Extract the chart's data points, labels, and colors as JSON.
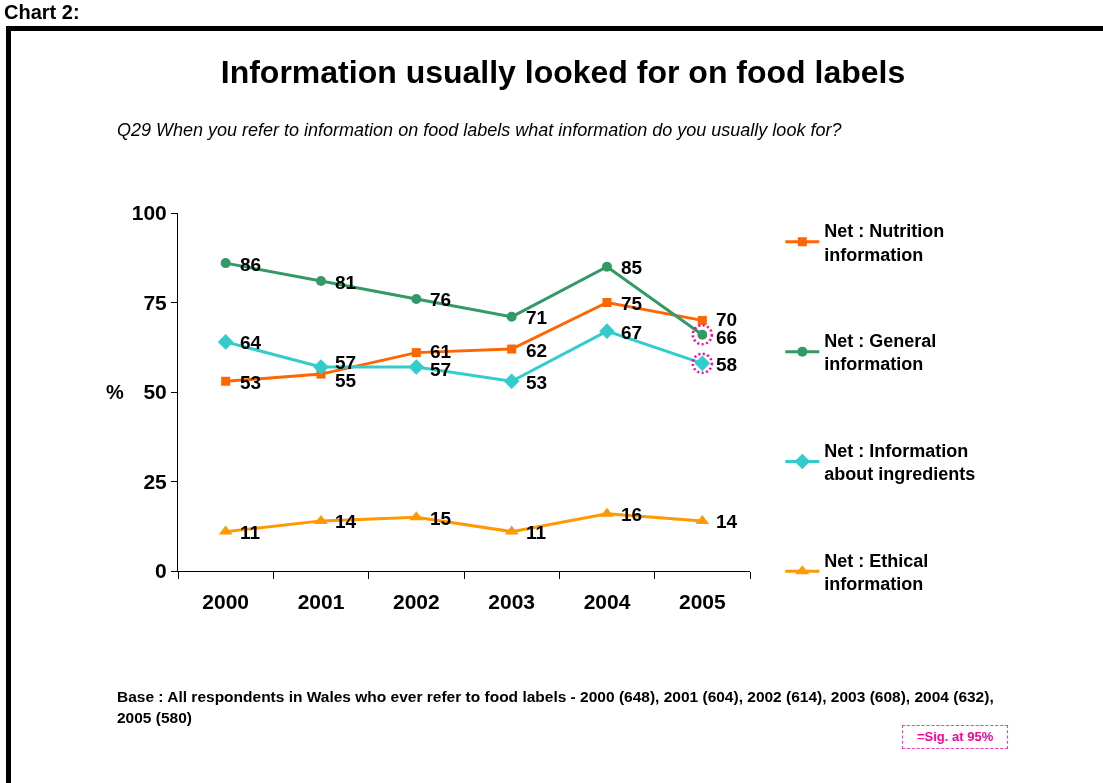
{
  "chart_data": {
    "type": "line",
    "title": "Information usually looked for on food labels",
    "subtitle": "Q29 When you refer to information on food labels what information do you usually look for?",
    "ylabel": "%",
    "categories": [
      "2000",
      "2001",
      "2002",
      "2003",
      "2004",
      "2005"
    ],
    "series": [
      {
        "name": "Net : Nutrition information",
        "color": "#ff6600",
        "marker": "square",
        "values": [
          53,
          55,
          61,
          62,
          75,
          70
        ],
        "value_labels": [
          "53",
          "55",
          "61",
          "62",
          "75",
          "70"
        ]
      },
      {
        "name": "Net : General information",
        "color": "#339966",
        "marker": "circle",
        "values": [
          86,
          81,
          76,
          71,
          85,
          66
        ],
        "value_labels": [
          "86",
          "81",
          "76",
          "71",
          "85",
          null
        ]
      },
      {
        "name": "Net : Information about ingredients",
        "color": "#33cccc",
        "marker": "diamond",
        "values": [
          64,
          57,
          57,
          53,
          67,
          58
        ],
        "value_labels": [
          "64",
          "57",
          "57",
          "53",
          "67",
          null
        ]
      },
      {
        "name": "Net : Ethical information",
        "color": "#ff9900",
        "marker": "triangle",
        "values": [
          11,
          14,
          15,
          11,
          16,
          14
        ],
        "value_labels": [
          "11",
          "14",
          "15",
          "11",
          "16",
          "14"
        ]
      },
      {
        "type": "scatter",
        "color": "#ff0099",
        "marker": "circle",
        "line_style": "dotted",
        "values": [
          null,
          null,
          null,
          null,
          null,
          66
        ],
        "value_labels": [
          null,
          null,
          null,
          null,
          null,
          "66"
        ]
      },
      {
        "type": "scatter",
        "color": "#ff0099",
        "marker": "circle",
        "line_style": "dotted",
        "values": [
          null,
          null,
          null,
          null,
          null,
          58
        ],
        "value_labels": [
          null,
          null,
          null,
          null,
          null,
          "58"
        ]
      }
    ],
    "ylim": [
      0,
      100
    ],
    "yticks": [
      0,
      25,
      50,
      75,
      100
    ],
    "legend": "right",
    "annotations": [
      "Chart 2:",
      "Base : All respondents in Wales who ever refer to food labels - 2000 (648), 2001 (604), 2002 (614), 2003 (608), 2004 (632), 2005 (580)",
      "=Sig. at 95%"
    ]
  }
}
